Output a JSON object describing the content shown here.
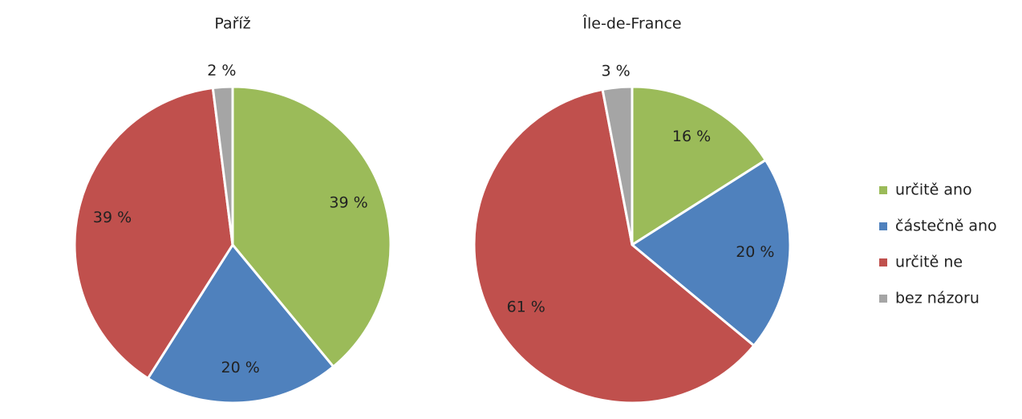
{
  "chart_data": [
    {
      "type": "pie",
      "title": "Paříž",
      "categories": [
        "určitě ano",
        "částečně ano",
        "určitě ne",
        "bez názoru"
      ],
      "values": [
        39,
        20,
        39,
        2
      ],
      "value_labels": [
        "39 %",
        "20 %",
        "39 %",
        "2 %"
      ],
      "colors": [
        "#9bbb59",
        "#4f81bd",
        "#c0504d",
        "#a5a5a5"
      ],
      "legend": "right"
    },
    {
      "type": "pie",
      "title": "Île-de-France",
      "categories": [
        "určitě ano",
        "částečně ano",
        "určitě ne",
        "bez názoru"
      ],
      "values": [
        16,
        20,
        61,
        3
      ],
      "value_labels": [
        "16 %",
        "20 %",
        "61 %",
        "3 %"
      ],
      "colors": [
        "#9bbb59",
        "#4f81bd",
        "#c0504d",
        "#a5a5a5"
      ],
      "legend": "right"
    }
  ]
}
